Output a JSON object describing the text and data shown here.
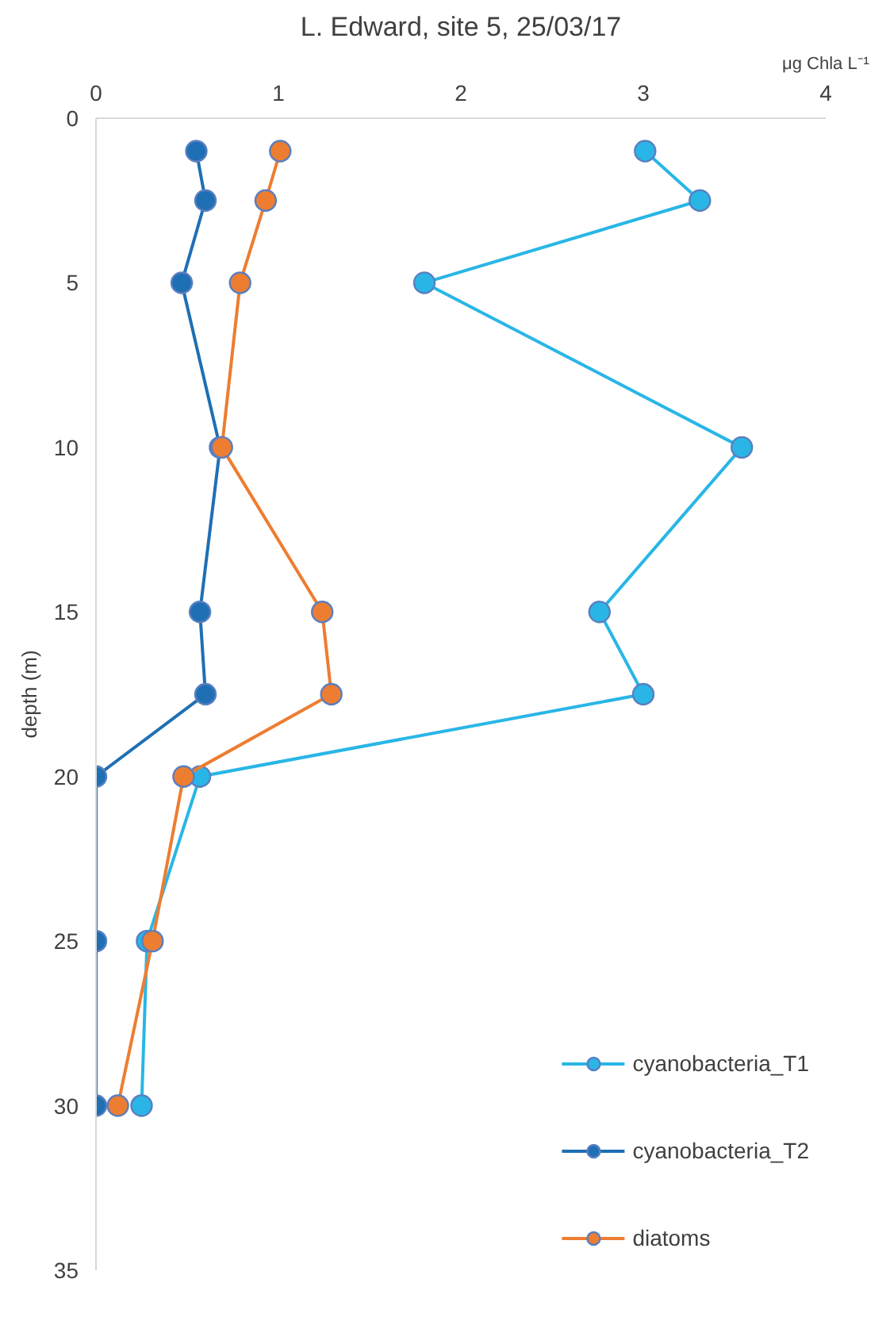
{
  "chart_data": {
    "type": "line",
    "title": "L. Edward, site 5, 25/03/17",
    "xlabel": "μg Chla L⁻¹",
    "ylabel": "depth (m)",
    "xlim": [
      0,
      4
    ],
    "xticks": [
      0,
      1,
      2,
      3,
      4
    ],
    "ylim": [
      35,
      0
    ],
    "yticks": [
      0,
      5,
      10,
      15,
      20,
      25,
      30,
      35
    ],
    "grid": false,
    "legend": "bottom right",
    "marker": "circle",
    "line_style": "solid",
    "series": [
      {
        "name": "cyanobacteria_T1",
        "color": "#29b6e6",
        "x": [
          3.01,
          3.31,
          1.8,
          3.54,
          2.76,
          3.0,
          0.57,
          0.28,
          0.25
        ],
        "values": [
          1,
          2.5,
          5,
          10,
          15,
          17.5,
          20,
          25,
          30
        ]
      },
      {
        "name": "cyanobacteria_T2",
        "color": "#1f6fb4",
        "x": [
          0.55,
          0.6,
          0.47,
          0.68,
          0.57,
          0.6,
          0,
          0,
          0
        ],
        "values": [
          1,
          2.5,
          5,
          10,
          15,
          17.5,
          20,
          25,
          30
        ]
      },
      {
        "name": "diatoms",
        "color": "#ed7d31",
        "x": [
          1.01,
          0.93,
          0.79,
          0.69,
          1.24,
          1.29,
          0.48,
          0.31,
          0.12
        ],
        "values": [
          1,
          2.5,
          5,
          10,
          15,
          17.5,
          20,
          25,
          30
        ]
      }
    ]
  }
}
